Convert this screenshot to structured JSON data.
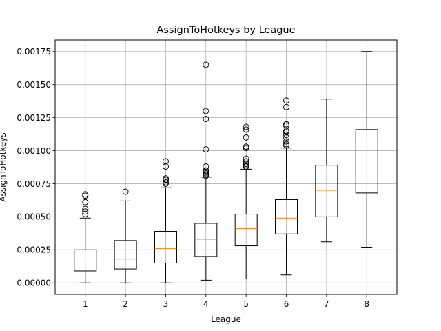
{
  "chart_data": {
    "type": "boxplot",
    "title": "AssignToHotkeys by League",
    "xlabel": "League",
    "ylabel": "AssignToHotkeys",
    "categories": [
      "1",
      "2",
      "3",
      "4",
      "5",
      "6",
      "7",
      "8"
    ],
    "ylim": [
      -8.75e-05,
      0.0018375
    ],
    "yticks": [
      0.0,
      0.00025,
      0.0005,
      0.00075,
      0.001,
      0.00125,
      0.0015,
      0.00175
    ],
    "ytick_labels": [
      "0.00000",
      "0.00025",
      "0.00050",
      "0.00075",
      "0.00100",
      "0.00125",
      "0.00150",
      "0.00175"
    ],
    "grid": true,
    "colors": {
      "box": "#000000",
      "median": "#ff7f0e",
      "grid": "#b0b0b0"
    },
    "boxes": [
      {
        "category": "1",
        "whisker_low": 0.0,
        "q1": 9e-05,
        "median": 0.00015,
        "q3": 0.00025,
        "whisker_high": 0.00049,
        "fliers": [
          0.00052,
          0.00054,
          0.00056,
          0.00061,
          0.00066,
          0.00067
        ]
      },
      {
        "category": "2",
        "whisker_low": 0.0,
        "q1": 0.000105,
        "median": 0.00018,
        "q3": 0.00032,
        "whisker_high": 0.00062,
        "fliers": [
          0.00069
        ]
      },
      {
        "category": "3",
        "whisker_low": 0.0,
        "q1": 0.00015,
        "median": 0.00026,
        "q3": 0.00039,
        "whisker_high": 0.00072,
        "fliers": [
          0.00075,
          0.00076,
          0.00078,
          0.00079,
          0.00088,
          0.00092
        ]
      },
      {
        "category": "4",
        "whisker_low": 2e-05,
        "q1": 0.0002,
        "median": 0.00033,
        "q3": 0.00045,
        "whisker_high": 0.0008,
        "fliers": [
          0.00081,
          0.00082,
          0.00083,
          0.00084,
          0.00085,
          0.00088,
          0.00101,
          0.00124,
          0.0013,
          0.00165
        ]
      },
      {
        "category": "5",
        "whisker_low": 3e-05,
        "q1": 0.00028,
        "median": 0.00041,
        "q3": 0.00052,
        "whisker_high": 0.00086,
        "fliers": [
          0.00088,
          0.00089,
          0.0009,
          0.00092,
          0.00094,
          0.00102,
          0.00103,
          0.0011,
          0.00116,
          0.00118
        ]
      },
      {
        "category": "6",
        "whisker_low": 6e-05,
        "q1": 0.00037,
        "median": 0.00049,
        "q3": 0.00063,
        "whisker_high": 0.00102,
        "fliers": [
          0.00104,
          0.00105,
          0.00107,
          0.0011,
          0.00112,
          0.00114,
          0.00115,
          0.00119,
          0.0012,
          0.00133,
          0.00138
        ]
      },
      {
        "category": "7",
        "whisker_low": 0.00031,
        "q1": 0.0005,
        "median": 0.0007,
        "q3": 0.00089,
        "whisker_high": 0.00139,
        "fliers": []
      },
      {
        "category": "8",
        "whisker_low": 0.00027,
        "q1": 0.00068,
        "median": 0.00087,
        "q3": 0.00116,
        "whisker_high": 0.00175,
        "fliers": []
      }
    ]
  }
}
